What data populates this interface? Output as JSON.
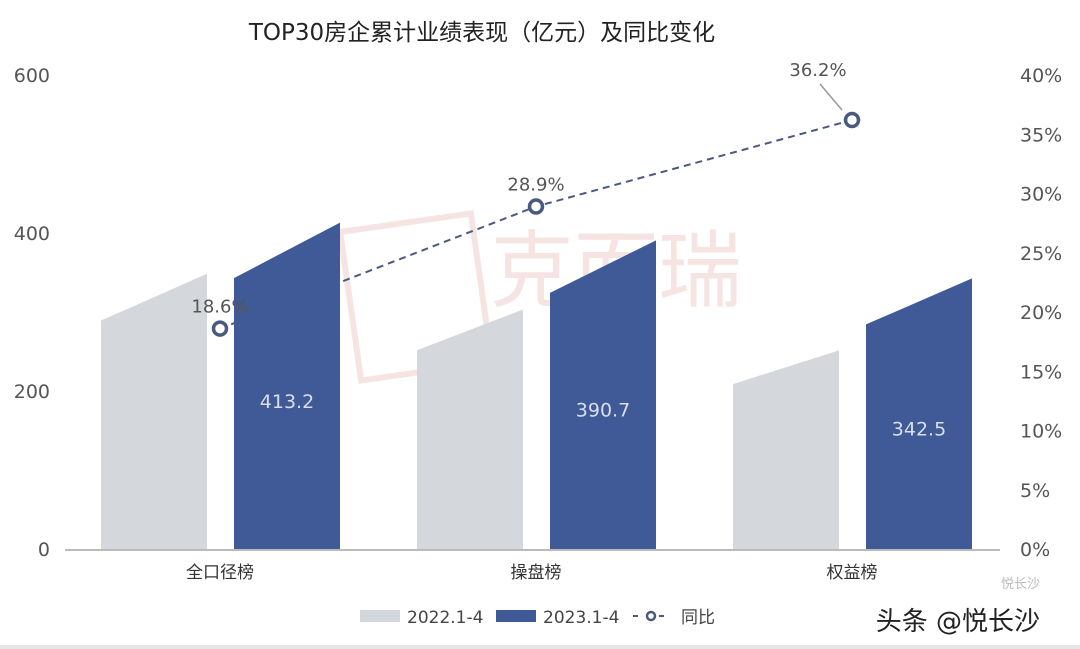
{
  "chart_data": {
    "type": "bar",
    "title": "TOP30房企累计业绩表现（亿元）及同比变化",
    "categories": [
      "全口径榜",
      "操盘榜",
      "权益榜"
    ],
    "series": [
      {
        "name": "2022.1-4",
        "type": "bar",
        "axis": "left",
        "color": "#d4d7db",
        "values": [
          348.4,
          303.1,
          251.5
        ]
      },
      {
        "name": "2023.1-4",
        "type": "bar",
        "axis": "left",
        "color": "#3f5a96",
        "values": [
          413.2,
          390.7,
          342.5
        ],
        "labels": [
          "413.2",
          "390.7",
          "342.5"
        ]
      },
      {
        "name": "同比",
        "type": "line",
        "axis": "right",
        "color": "#4a5a7e",
        "values": [
          18.6,
          28.9,
          36.2
        ],
        "labels": [
          "18.6%",
          "28.9%",
          "36.2%"
        ]
      }
    ],
    "yleft": {
      "ylim": [
        0,
        600
      ],
      "ticks": [
        "0",
        "200",
        "400",
        "600"
      ],
      "tick_values": [
        0,
        200,
        400,
        600
      ]
    },
    "yright": {
      "ylim": [
        0,
        40
      ],
      "ticks": [
        "0%",
        "5%",
        "10%",
        "15%",
        "20%",
        "25%",
        "30%",
        "35%",
        "40%"
      ],
      "tick_values": [
        0,
        5,
        10,
        15,
        20,
        25,
        30,
        35,
        40
      ]
    },
    "legend": {
      "position": "bottom",
      "items": [
        "2022.1-4",
        "2023.1-4",
        "同比"
      ]
    },
    "grid": false
  },
  "watermark": "克而瑞",
  "credit": "头条 @悦长沙",
  "credit_small": "悦长沙"
}
